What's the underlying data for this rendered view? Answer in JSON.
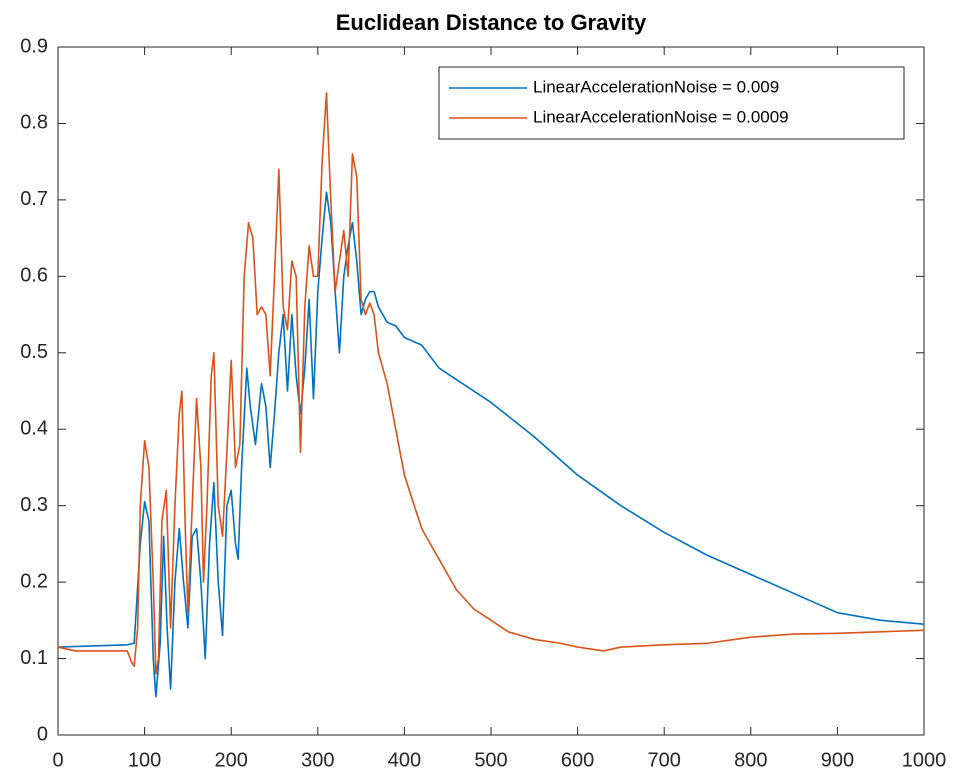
{
  "chart_data": {
    "type": "line",
    "title": "Euclidean Distance to Gravity",
    "xlim": [
      0,
      1000
    ],
    "xticks": [
      0,
      100,
      200,
      300,
      400,
      500,
      600,
      700,
      800,
      900,
      1000
    ],
    "ylim": [
      0,
      0.9
    ],
    "yticks": [
      0,
      0.1,
      0.2,
      0.3,
      0.4,
      0.5,
      0.6,
      0.7,
      0.8,
      0.9
    ],
    "grid": false,
    "legend": "northeast",
    "series": [
      {
        "name": "LinearAccelerationNoise = 0.009",
        "color": "#0072BD",
        "x": [
          0,
          80,
          88,
          95,
          100,
          105,
          110,
          113,
          118,
          122,
          126,
          130,
          135,
          140,
          145,
          150,
          155,
          160,
          165,
          170,
          175,
          180,
          185,
          190,
          195,
          200,
          205,
          208,
          212,
          218,
          222,
          228,
          235,
          240,
          245,
          250,
          255,
          260,
          265,
          270,
          275,
          280,
          285,
          290,
          295,
          300,
          305,
          310,
          315,
          320,
          325,
          330,
          335,
          340,
          345,
          350,
          355,
          360,
          365,
          370,
          380,
          390,
          400,
          420,
          440,
          460,
          500,
          550,
          600,
          650,
          700,
          750,
          800,
          850,
          900,
          950,
          1000
        ],
        "values": [
          0.115,
          0.118,
          0.12,
          0.25,
          0.305,
          0.28,
          0.1,
          0.05,
          0.12,
          0.26,
          0.14,
          0.06,
          0.2,
          0.27,
          0.2,
          0.14,
          0.26,
          0.27,
          0.2,
          0.1,
          0.25,
          0.33,
          0.2,
          0.13,
          0.3,
          0.32,
          0.25,
          0.23,
          0.35,
          0.48,
          0.43,
          0.38,
          0.46,
          0.43,
          0.35,
          0.42,
          0.5,
          0.55,
          0.45,
          0.55,
          0.47,
          0.42,
          0.48,
          0.57,
          0.44,
          0.58,
          0.65,
          0.71,
          0.67,
          0.58,
          0.5,
          0.6,
          0.64,
          0.67,
          0.62,
          0.55,
          0.57,
          0.58,
          0.58,
          0.56,
          0.54,
          0.535,
          0.52,
          0.51,
          0.48,
          0.465,
          0.435,
          0.39,
          0.34,
          0.3,
          0.265,
          0.235,
          0.21,
          0.185,
          0.16,
          0.15,
          0.145
        ]
      },
      {
        "name": "LinearAccelerationNoise = 0.0009",
        "color": "#D95319",
        "x": [
          0,
          20,
          80,
          85,
          88,
          92,
          95,
          100,
          105,
          110,
          113,
          116,
          120,
          125,
          130,
          135,
          140,
          143,
          147,
          150,
          155,
          160,
          165,
          168,
          172,
          177,
          180,
          185,
          190,
          195,
          200,
          205,
          210,
          215,
          220,
          225,
          230,
          235,
          240,
          245,
          250,
          255,
          260,
          265,
          270,
          275,
          280,
          285,
          290,
          295,
          300,
          305,
          310,
          315,
          320,
          325,
          330,
          335,
          340,
          345,
          350,
          355,
          360,
          365,
          370,
          380,
          390,
          400,
          420,
          440,
          460,
          480,
          500,
          520,
          550,
          580,
          600,
          630,
          650,
          700,
          750,
          800,
          850,
          900,
          950,
          1000
        ],
        "values": [
          0.115,
          0.11,
          0.11,
          0.095,
          0.09,
          0.14,
          0.3,
          0.385,
          0.35,
          0.2,
          0.08,
          0.1,
          0.28,
          0.32,
          0.14,
          0.3,
          0.42,
          0.45,
          0.27,
          0.16,
          0.3,
          0.44,
          0.35,
          0.2,
          0.3,
          0.47,
          0.5,
          0.3,
          0.26,
          0.37,
          0.49,
          0.35,
          0.38,
          0.6,
          0.67,
          0.65,
          0.55,
          0.56,
          0.55,
          0.47,
          0.6,
          0.74,
          0.56,
          0.53,
          0.62,
          0.6,
          0.37,
          0.56,
          0.64,
          0.6,
          0.6,
          0.75,
          0.84,
          0.7,
          0.58,
          0.62,
          0.66,
          0.6,
          0.76,
          0.73,
          0.57,
          0.55,
          0.565,
          0.55,
          0.5,
          0.46,
          0.4,
          0.34,
          0.27,
          0.23,
          0.19,
          0.165,
          0.15,
          0.135,
          0.125,
          0.12,
          0.115,
          0.11,
          0.115,
          0.118,
          0.12,
          0.128,
          0.132,
          0.133,
          0.135,
          0.137
        ]
      }
    ]
  }
}
